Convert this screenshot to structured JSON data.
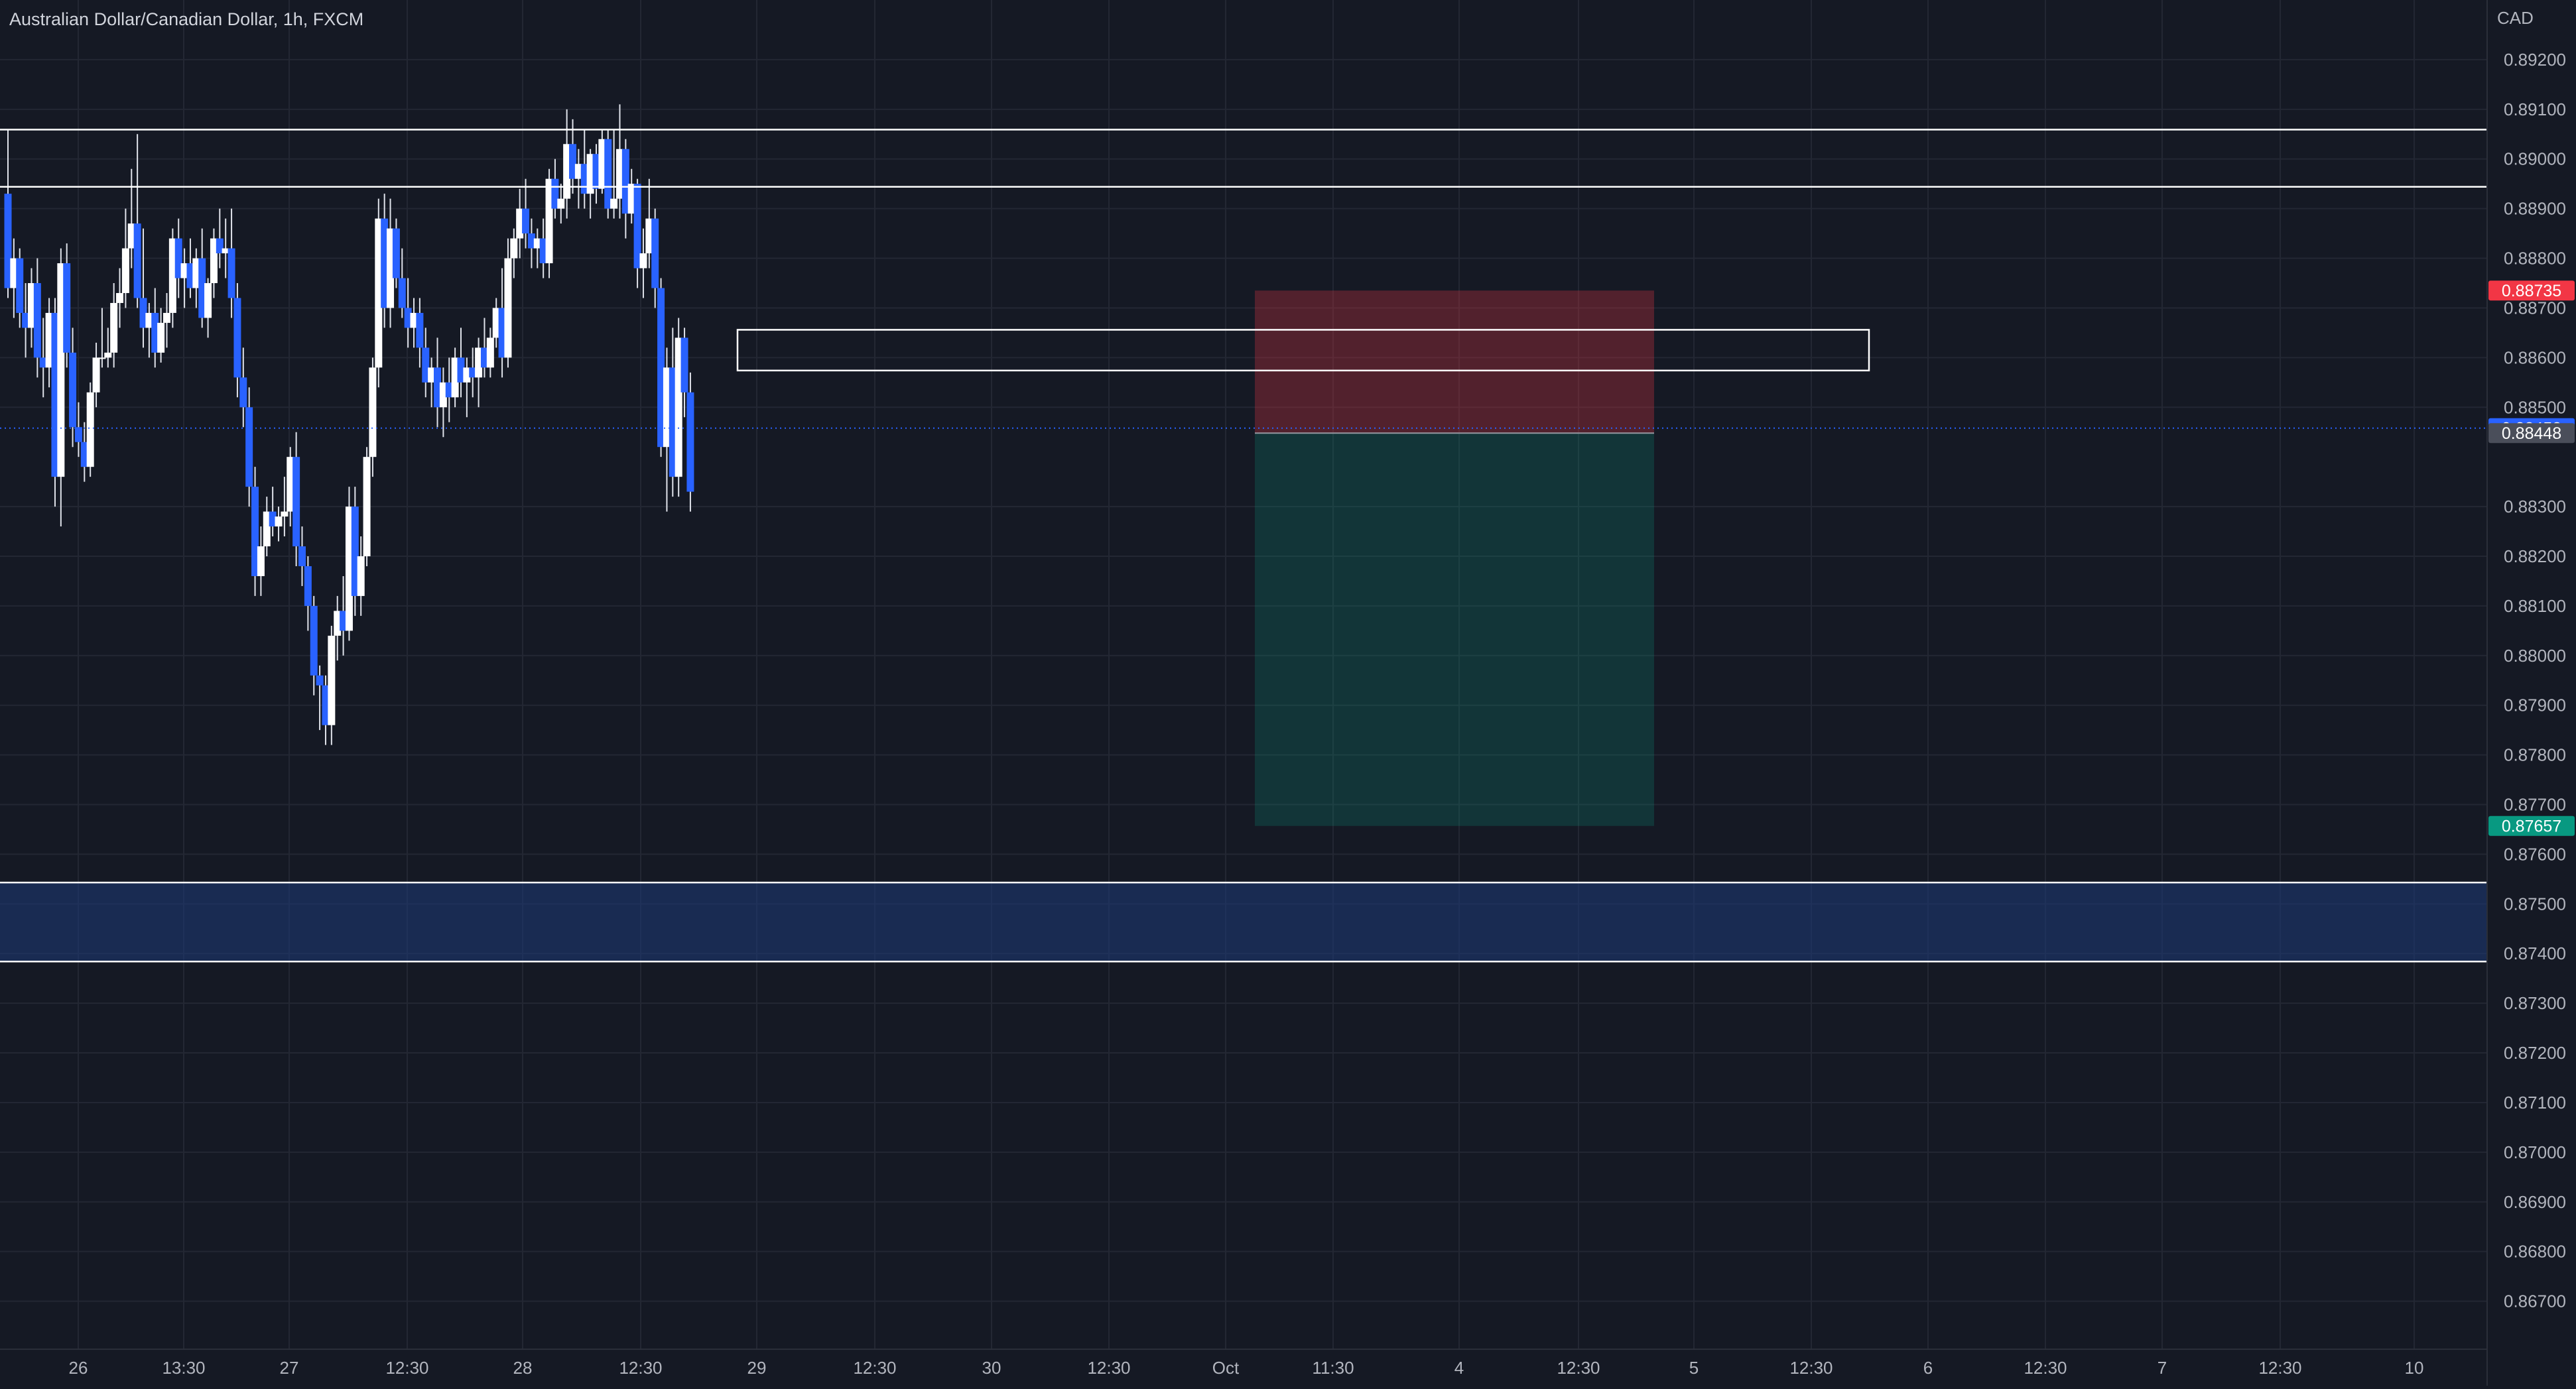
{
  "header": {
    "title": "Australian Dollar/Canadian Dollar, 1h, FXCM"
  },
  "colors": {
    "background": "#151924",
    "grid": "#232733",
    "candle_up": "#ffffff",
    "candle_down": "#2962ff",
    "wick": "#e0e3eb",
    "stop_zone": "#f23645",
    "target_zone": "#089981",
    "demand_zone": "#1e3a78",
    "level_line": "#ffffff"
  },
  "chart_data": {
    "type": "candlestick",
    "title": "Australian Dollar/Canadian Dollar, 1h, FXCM",
    "currency_label": "CAD",
    "ylim": [
      0.8662,
      0.8927
    ],
    "y_ticks": [
      "0.89200",
      "0.89100",
      "0.89000",
      "0.88900",
      "0.88800",
      "0.88700",
      "0.88600",
      "0.88500",
      "0.88300",
      "0.88200",
      "0.88100",
      "0.88000",
      "0.87900",
      "0.87800",
      "0.87700",
      "0.87600",
      "0.87500",
      "0.87400",
      "0.87300",
      "0.87200",
      "0.87100",
      "0.87000",
      "0.86900",
      "0.86800",
      "0.86700"
    ],
    "x_ticks": [
      "26",
      "13:30",
      "27",
      "12:30",
      "28",
      "12:30",
      "29",
      "12:30",
      "30",
      "12:30",
      "Oct",
      "11:30",
      "4",
      "12:30",
      "5",
      "12:30",
      "6",
      "12:30",
      "7",
      "12:30",
      "10"
    ],
    "grid": true,
    "price_badges": [
      {
        "label": "0.88735",
        "value": 0.88735,
        "color": "#f23645"
      },
      {
        "label": "0.88458",
        "value": 0.88458,
        "color": "#2962ff"
      },
      {
        "label": "0.88448",
        "value": 0.88448,
        "color": "#4a4e5a"
      },
      {
        "label": "0.87657",
        "value": 0.87657,
        "color": "#089981"
      }
    ],
    "last_price": 0.88458,
    "horizontal_levels": [
      0.89059,
      0.88944
    ],
    "demand_zone": {
      "top": 0.87543,
      "bottom": 0.87384
    },
    "consolidation_box": {
      "top": 0.88656,
      "bottom": 0.88574,
      "from_bar": 63,
      "to_bar": 160
    },
    "short_position": {
      "entry": 0.88448,
      "stop": 0.88735,
      "target": 0.87657,
      "from_bar": 108,
      "to_bar": 142
    },
    "candles": [
      [
        0.8893,
        0.8906,
        0.8872,
        0.8874
      ],
      [
        0.8874,
        0.8884,
        0.8868,
        0.888
      ],
      [
        0.888,
        0.8882,
        0.8866,
        0.8869
      ],
      [
        0.8869,
        0.8875,
        0.886,
        0.8866
      ],
      [
        0.8866,
        0.8878,
        0.8862,
        0.8875
      ],
      [
        0.8875,
        0.888,
        0.8856,
        0.886
      ],
      [
        0.886,
        0.8868,
        0.8852,
        0.8858
      ],
      [
        0.8858,
        0.8872,
        0.8854,
        0.8869
      ],
      [
        0.8869,
        0.8872,
        0.883,
        0.8836
      ],
      [
        0.8836,
        0.8882,
        0.8826,
        0.8879
      ],
      [
        0.8879,
        0.8883,
        0.8858,
        0.8861
      ],
      [
        0.8861,
        0.8866,
        0.8842,
        0.8846
      ],
      [
        0.8846,
        0.8851,
        0.884,
        0.8843
      ],
      [
        0.8843,
        0.8847,
        0.8835,
        0.8838
      ],
      [
        0.8838,
        0.8855,
        0.8836,
        0.8853
      ],
      [
        0.8853,
        0.8863,
        0.885,
        0.886
      ],
      [
        0.886,
        0.887,
        0.8858,
        0.886
      ],
      [
        0.886,
        0.8866,
        0.8858,
        0.8861
      ],
      [
        0.8861,
        0.8875,
        0.8858,
        0.8871
      ],
      [
        0.8871,
        0.8878,
        0.8866,
        0.8873
      ],
      [
        0.8873,
        0.889,
        0.887,
        0.8882
      ],
      [
        0.8882,
        0.8898,
        0.8878,
        0.8887
      ],
      [
        0.8887,
        0.8905,
        0.887,
        0.8872
      ],
      [
        0.8872,
        0.8886,
        0.8862,
        0.8866
      ],
      [
        0.8866,
        0.8871,
        0.886,
        0.8869
      ],
      [
        0.8869,
        0.8874,
        0.8858,
        0.8861
      ],
      [
        0.8861,
        0.887,
        0.8859,
        0.8867
      ],
      [
        0.8867,
        0.8873,
        0.8862,
        0.8869
      ],
      [
        0.8869,
        0.8886,
        0.8866,
        0.8884
      ],
      [
        0.8884,
        0.8888,
        0.8872,
        0.8876
      ],
      [
        0.8876,
        0.8882,
        0.887,
        0.8879
      ],
      [
        0.8879,
        0.8884,
        0.8872,
        0.8874
      ],
      [
        0.8874,
        0.8882,
        0.887,
        0.888
      ],
      [
        0.888,
        0.8886,
        0.8866,
        0.8868
      ],
      [
        0.8868,
        0.8876,
        0.8864,
        0.8875
      ],
      [
        0.8875,
        0.8886,
        0.8872,
        0.8884
      ],
      [
        0.8884,
        0.889,
        0.8878,
        0.8881
      ],
      [
        0.8881,
        0.8888,
        0.8876,
        0.8882
      ],
      [
        0.8882,
        0.889,
        0.8868,
        0.8872
      ],
      [
        0.8872,
        0.8875,
        0.8852,
        0.8856
      ],
      [
        0.8856,
        0.8862,
        0.8846,
        0.885
      ],
      [
        0.885,
        0.8854,
        0.883,
        0.8834
      ],
      [
        0.8834,
        0.8838,
        0.8812,
        0.8816
      ],
      [
        0.8816,
        0.8826,
        0.8812,
        0.8822
      ],
      [
        0.8822,
        0.8832,
        0.882,
        0.8829
      ],
      [
        0.8829,
        0.8834,
        0.8824,
        0.8826
      ],
      [
        0.8826,
        0.883,
        0.8823,
        0.8828
      ],
      [
        0.8828,
        0.8836,
        0.8824,
        0.8829
      ],
      [
        0.8829,
        0.8842,
        0.8826,
        0.884
      ],
      [
        0.884,
        0.8845,
        0.8818,
        0.8822
      ],
      [
        0.8822,
        0.8826,
        0.8814,
        0.8818
      ],
      [
        0.8818,
        0.882,
        0.8805,
        0.881
      ],
      [
        0.881,
        0.8812,
        0.8792,
        0.8796
      ],
      [
        0.8796,
        0.8798,
        0.8785,
        0.8794
      ],
      [
        0.8794,
        0.8796,
        0.8782,
        0.8786
      ],
      [
        0.8786,
        0.8806,
        0.8782,
        0.8804
      ],
      [
        0.8804,
        0.8812,
        0.8799,
        0.8809
      ],
      [
        0.8809,
        0.8816,
        0.88,
        0.8805
      ],
      [
        0.8805,
        0.8834,
        0.8803,
        0.883
      ],
      [
        0.883,
        0.8834,
        0.8808,
        0.8812
      ],
      [
        0.8812,
        0.8824,
        0.8808,
        0.882
      ],
      [
        0.882,
        0.8842,
        0.8818,
        0.884
      ],
      [
        0.884,
        0.886,
        0.8836,
        0.8858
      ],
      [
        0.8858,
        0.8892,
        0.8854,
        0.8888
      ],
      [
        0.8888,
        0.8893,
        0.8866,
        0.887
      ],
      [
        0.887,
        0.8892,
        0.8866,
        0.8886
      ],
      [
        0.8886,
        0.8888,
        0.8874,
        0.8876
      ],
      [
        0.8876,
        0.8882,
        0.8868,
        0.887
      ],
      [
        0.887,
        0.8876,
        0.8862,
        0.8866
      ],
      [
        0.8866,
        0.8872,
        0.8862,
        0.8869
      ],
      [
        0.8869,
        0.8872,
        0.8858,
        0.8862
      ],
      [
        0.8862,
        0.8866,
        0.8852,
        0.8855
      ],
      [
        0.8855,
        0.886,
        0.885,
        0.8858
      ],
      [
        0.8858,
        0.8864,
        0.8846,
        0.885
      ],
      [
        0.885,
        0.8858,
        0.8844,
        0.8855
      ],
      [
        0.8855,
        0.886,
        0.8847,
        0.8852
      ],
      [
        0.8852,
        0.8862,
        0.885,
        0.886
      ],
      [
        0.886,
        0.8866,
        0.8852,
        0.8855
      ],
      [
        0.8855,
        0.886,
        0.8848,
        0.8858
      ],
      [
        0.8858,
        0.8862,
        0.8852,
        0.8856
      ],
      [
        0.8856,
        0.8864,
        0.885,
        0.8862
      ],
      [
        0.8862,
        0.8868,
        0.8856,
        0.8858
      ],
      [
        0.8858,
        0.8866,
        0.8856,
        0.8864
      ],
      [
        0.8864,
        0.8872,
        0.8862,
        0.887
      ],
      [
        0.887,
        0.8878,
        0.8856,
        0.886
      ],
      [
        0.886,
        0.8884,
        0.8858,
        0.888
      ],
      [
        0.888,
        0.8886,
        0.8876,
        0.8884
      ],
      [
        0.8884,
        0.8894,
        0.888,
        0.889
      ],
      [
        0.889,
        0.8896,
        0.8882,
        0.8885
      ],
      [
        0.8885,
        0.8888,
        0.8878,
        0.8882
      ],
      [
        0.8882,
        0.8886,
        0.8878,
        0.8884
      ],
      [
        0.8884,
        0.8888,
        0.8876,
        0.8879
      ],
      [
        0.8879,
        0.8898,
        0.8876,
        0.8896
      ],
      [
        0.8896,
        0.89,
        0.8888,
        0.889
      ],
      [
        0.889,
        0.8895,
        0.8887,
        0.8892
      ],
      [
        0.8892,
        0.891,
        0.8888,
        0.8903
      ],
      [
        0.8903,
        0.8908,
        0.8893,
        0.8896
      ],
      [
        0.8896,
        0.8902,
        0.889,
        0.8899
      ],
      [
        0.8899,
        0.8906,
        0.889,
        0.8893
      ],
      [
        0.8893,
        0.8902,
        0.8888,
        0.8901
      ],
      [
        0.8901,
        0.8903,
        0.8891,
        0.8894
      ],
      [
        0.8894,
        0.8906,
        0.8893,
        0.8904
      ],
      [
        0.8904,
        0.8906,
        0.8888,
        0.889
      ],
      [
        0.889,
        0.8906,
        0.8888,
        0.8892
      ],
      [
        0.8892,
        0.8911,
        0.8888,
        0.8902
      ],
      [
        0.8902,
        0.8904,
        0.8884,
        0.8889
      ],
      [
        0.8889,
        0.8898,
        0.8887,
        0.8895
      ],
      [
        0.8895,
        0.8896,
        0.8874,
        0.8878
      ],
      [
        0.8878,
        0.8886,
        0.8872,
        0.8881
      ],
      [
        0.8881,
        0.8896,
        0.8878,
        0.8888
      ],
      [
        0.8888,
        0.889,
        0.887,
        0.8874
      ],
      [
        0.8874,
        0.8876,
        0.884,
        0.8842
      ],
      [
        0.8842,
        0.8862,
        0.8829,
        0.8858
      ],
      [
        0.8858,
        0.8866,
        0.8832,
        0.8836
      ],
      [
        0.8836,
        0.8868,
        0.8832,
        0.8864
      ],
      [
        0.8864,
        0.8866,
        0.8848,
        0.8853
      ],
      [
        0.8853,
        0.8857,
        0.8829,
        0.8833
      ]
    ]
  }
}
